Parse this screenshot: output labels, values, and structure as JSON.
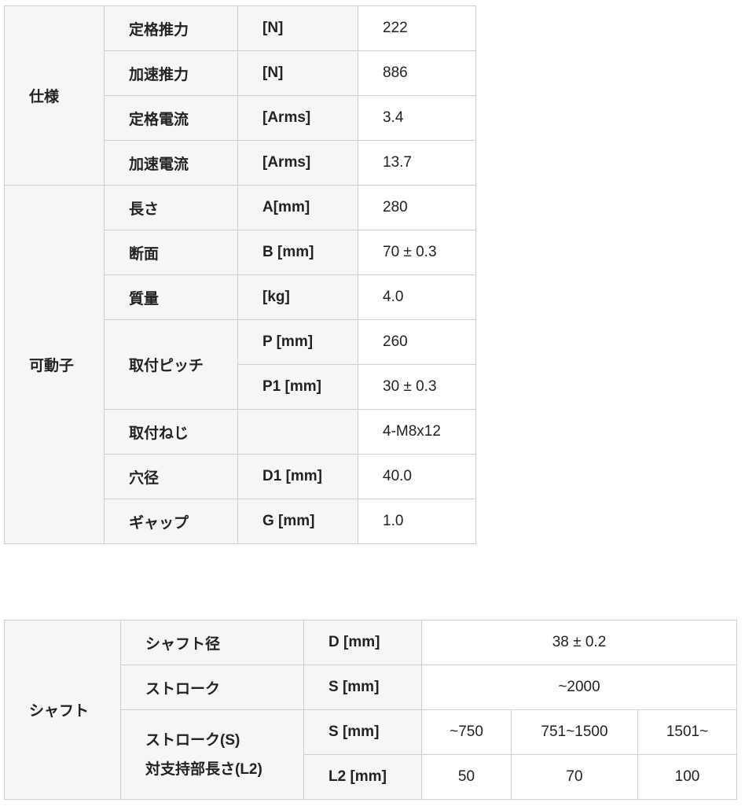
{
  "spec_table": {
    "group1": "仕様",
    "group2": "可動子",
    "rows": [
      {
        "item": "定格推力",
        "unit": "[N]",
        "value": "222"
      },
      {
        "item": "加速推力",
        "unit": "[N]",
        "value": "886"
      },
      {
        "item": "定格電流",
        "unit": "[Arms]",
        "value": "3.4"
      },
      {
        "item": "加速電流",
        "unit": "[Arms]",
        "value": "13.7"
      },
      {
        "item": "長さ",
        "unit": "A[mm]",
        "value": "280"
      },
      {
        "item": "断面",
        "unit": "B [mm]",
        "value": "70 ± 0.3"
      },
      {
        "item": "質量",
        "unit": "[kg]",
        "value": "4.0"
      },
      {
        "item": "取付ピッチ",
        "unit": "P [mm]",
        "value": "260"
      },
      {
        "item": "",
        "unit": "P1 [mm]",
        "value": "30 ± 0.3"
      },
      {
        "item": "取付ねじ",
        "unit": "",
        "value": "4-M8x12"
      },
      {
        "item": "穴径",
        "unit": "D1 [mm]",
        "value": "40.0"
      },
      {
        "item": "ギャップ",
        "unit": "G [mm]",
        "value": "1.0"
      }
    ]
  },
  "shaft_table": {
    "group": "シャフト",
    "diameter": {
      "item": "シャフト径",
      "unit": "D [mm]",
      "value": "38 ± 0.2"
    },
    "stroke": {
      "item": "ストローク",
      "unit": "S [mm]",
      "value": "~2000"
    },
    "support": {
      "item_line1": "ストローク(S)",
      "item_line2": "対支持部長さ(L2)",
      "unit_s": "S [mm]",
      "unit_l2": "L2 [mm]",
      "s_values": [
        "~750",
        "751~1500",
        "1501~"
      ],
      "l2_values": [
        "50",
        "70",
        "100"
      ]
    }
  }
}
